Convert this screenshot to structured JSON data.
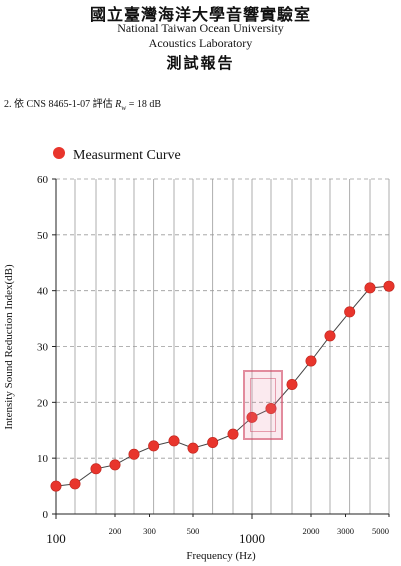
{
  "header": {
    "title_zh": "國立臺灣海洋大學音響實驗室",
    "title_en_1": "National Taiwan Ocean University",
    "title_en_2": "Acoustics Laboratory",
    "report_zh": "測試報告"
  },
  "note": {
    "prefix": "2. 依 CNS 8465-1-07 評估 ",
    "symbol": "R",
    "subscript": "w",
    "suffix": " = 18 dB"
  },
  "chart_data": {
    "type": "scatter",
    "legend": "Measurment Curve",
    "legend_position": "top-left",
    "xlabel": "Frequency (Hz)",
    "ylabel": "Intensity Sound Reduction Index(dB)",
    "x_scale": "log",
    "xlim": [
      100,
      5000
    ],
    "ylim": [
      0,
      60
    ],
    "grid": true,
    "marker_color": "#e8352c",
    "line_color": "#444444",
    "major_x_ticks": [
      100,
      1000
    ],
    "minor_x_ticks": [
      200,
      300,
      500,
      2000,
      3000,
      5000
    ],
    "y_ticks": [
      0,
      10,
      20,
      30,
      40,
      50,
      60
    ],
    "series": [
      {
        "name": "Measurment Curve",
        "x": [
          100,
          125,
          160,
          200,
          250,
          315,
          400,
          500,
          630,
          800,
          1000,
          1250,
          1600,
          2000,
          2500,
          3150,
          4000,
          5000
        ],
        "y": [
          5,
          5.4,
          8.1,
          8.8,
          10.7,
          12.2,
          13.1,
          11.8,
          12.8,
          14.3,
          17.3,
          18.9,
          23.2,
          27.4,
          31.9,
          36.2,
          40.5,
          40.8
        ]
      }
    ]
  },
  "stamp": {
    "color": "#d23c5a"
  }
}
